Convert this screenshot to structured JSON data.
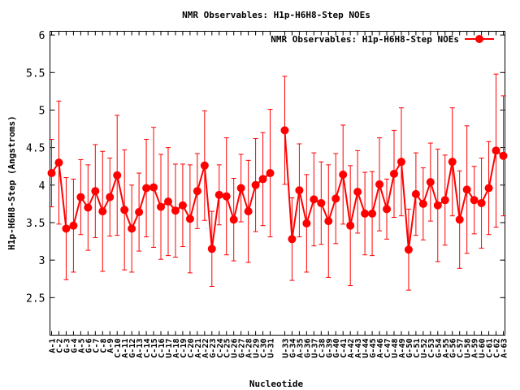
{
  "chart_data": {
    "type": "line",
    "title": "NMR Observables: H1p-H6H8-Step NOEs",
    "xlabel": "Nucleotide",
    "ylabel": "H1p-H6H8-Step (Angstroms)",
    "ylim": [
      2.0,
      6.05
    ],
    "yticks": [
      "2.5",
      "3",
      "3.5",
      "4",
      "4.5",
      "5",
      "5.5",
      "6"
    ],
    "ytick_values": [
      2.5,
      3.0,
      3.5,
      4.0,
      4.5,
      5.0,
      5.5,
      6.0
    ],
    "grid": false,
    "legend_position": "top-right",
    "series": [
      {
        "name": "NMR Observables: H1p-H6H8-Step NOEs",
        "color": "#ff0000",
        "segments": [
          {
            "labels": [
              "A-1",
              "C-2",
              "G-3",
              "G-4",
              "A-5",
              "G-6",
              "C-7",
              "C-8",
              "A-9",
              "C-10",
              "A-11",
              "G-12",
              "A-13",
              "C-14",
              "C-15",
              "C-16",
              "U-17",
              "A-18",
              "C-19",
              "C-20",
              "A-21",
              "A-22",
              "G-23",
              "C-24",
              "C-25",
              "U-26",
              "G-27",
              "A-28",
              "U-29",
              "C-30",
              "U-31"
            ],
            "values": [
              4.16,
              4.3,
              3.42,
              3.46,
              3.84,
              3.7,
              3.92,
              3.65,
              3.84,
              4.13,
              3.67,
              3.42,
              3.64,
              3.96,
              3.97,
              3.71,
              3.78,
              3.66,
              3.73,
              3.55,
              3.92,
              4.26,
              3.15,
              3.87,
              3.85,
              3.54,
              3.96,
              3.65,
              4.0,
              4.08,
              4.16
            ],
            "errors": [
              0.45,
              0.82,
              0.68,
              0.62,
              0.5,
              0.57,
              0.62,
              0.8,
              0.52,
              0.8,
              0.8,
              0.58,
              0.52,
              0.65,
              0.8,
              0.7,
              0.72,
              0.62,
              0.55,
              0.72,
              0.5,
              0.73,
              0.5,
              0.4,
              0.78,
              0.55,
              0.45,
              0.68,
              0.62,
              0.62,
              0.85
            ]
          },
          {
            "labels": [
              "U-33",
              "G-34",
              "A-35",
              "G-36",
              "U-37",
              "C-38",
              "G-39",
              "G-40",
              "C-41",
              "A-42",
              "A-43",
              "U-44",
              "G-45",
              "A-46",
              "C-47",
              "U-48",
              "A-49",
              "G-50",
              "C-51",
              "U-52",
              "C-53",
              "G-54",
              "A-55",
              "G-56",
              "C-57",
              "U-58",
              "A-59",
              "U-60",
              "C-61",
              "C-62",
              "A-63"
            ],
            "values": [
              4.73,
              3.28,
              3.93,
              3.49,
              3.81,
              3.76,
              3.52,
              3.82,
              4.14,
              3.46,
              3.91,
              3.62,
              3.62,
              4.01,
              3.68,
              4.15,
              4.31,
              3.14,
              3.88,
              3.75,
              4.04,
              3.73,
              3.8,
              4.31,
              3.54,
              3.94,
              3.8,
              3.76,
              3.96,
              4.46,
              4.39
            ]
          }
        ],
        "errors_b": [
          0.72,
          0.55,
          0.62,
          0.65,
          0.62,
          0.55,
          0.75,
          0.6,
          0.66,
          0.8,
          0.55,
          0.55,
          0.56,
          0.62,
          0.4,
          0.58,
          0.72,
          0.54,
          0.55,
          0.48,
          0.52,
          0.75,
          0.6,
          0.72,
          0.65,
          0.85,
          0.45,
          0.6,
          0.62,
          1.02,
          0.8
        ]
      }
    ]
  }
}
